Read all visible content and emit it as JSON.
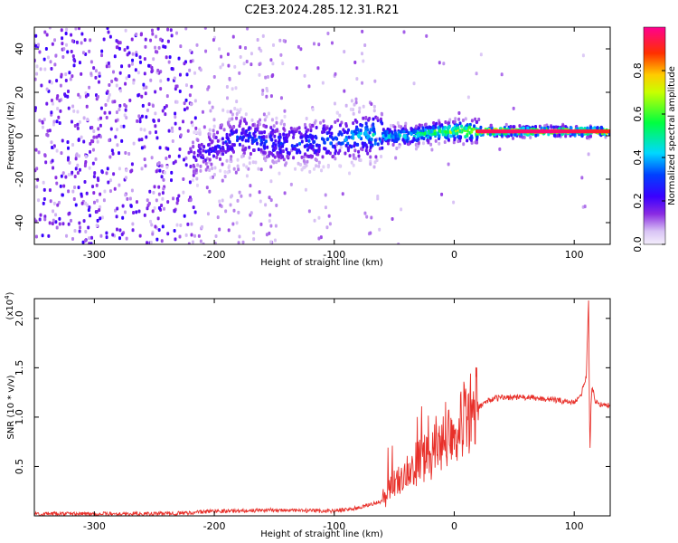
{
  "title": "C2E3.2024.285.12.31.R21",
  "colors": {
    "snr_line": "#e8302a",
    "spec_dot": "#6a00e8",
    "spec_faint": "#d8c4f4"
  },
  "chart_data": [
    {
      "type": "heatmap",
      "xlabel": "Height of straight line (km)",
      "ylabel": "Frequency (Hz)",
      "xlim": [
        -350,
        130
      ],
      "ylim": [
        -50,
        50
      ],
      "x_ticks": [
        -300,
        -200,
        -100,
        0,
        100
      ],
      "y_ticks": [
        -40,
        -20,
        0,
        20,
        40
      ],
      "colorbar": {
        "label": "Normalized spectral amplitude",
        "range": [
          0.0,
          1.0
        ],
        "ticks": [
          "0.0",
          "0.2",
          "0.4",
          "0.6",
          "0.8"
        ],
        "tick_values": [
          0.0,
          0.2,
          0.4,
          0.6,
          0.8
        ],
        "colormap": "rainbow (lavender-purple-blue-cyan-green-yellow-red-magenta)"
      },
      "ridge": [
        {
          "x": -215,
          "freq": -10,
          "amp": 0.25
        },
        {
          "x": -180,
          "freq": 0,
          "amp": 0.35
        },
        {
          "x": -140,
          "freq": -4,
          "amp": 0.35
        },
        {
          "x": -100,
          "freq": -2,
          "amp": 0.4
        },
        {
          "x": -75,
          "freq": 0,
          "amp": 0.5
        },
        {
          "x": -40,
          "freq": 0,
          "amp": 0.55
        },
        {
          "x": -10,
          "freq": 2,
          "amp": 0.7
        },
        {
          "x": 20,
          "freq": 2,
          "amp": 0.95
        },
        {
          "x": 80,
          "freq": 2,
          "amp": 0.98
        },
        {
          "x": 130,
          "freq": 2,
          "amp": 0.9
        }
      ]
    },
    {
      "type": "line",
      "xlabel": "Height of straight line (km)",
      "ylabel": "SNR (10 * v/v)",
      "y_exponent_label": "(x10",
      "y_exponent_power": "4",
      "xlim": [
        -350,
        130
      ],
      "ylim": [
        0,
        2.2
      ],
      "x_ticks": [
        -300,
        -200,
        -100,
        0,
        100
      ],
      "y_ticks": [
        0.5,
        1.0,
        1.5,
        2.0
      ],
      "y_tick_labels": [
        "0.5",
        "1.0",
        "1.5",
        "2.0"
      ],
      "series": [
        {
          "x": [
            -350,
            -300,
            -250,
            -220,
            -200,
            -180,
            -150,
            -120,
            -100,
            -80,
            -60,
            -50,
            -40,
            -30,
            -20,
            -10,
            0,
            10,
            20,
            30,
            40,
            60,
            80,
            100,
            105,
            110,
            112,
            113,
            114,
            115,
            118,
            125,
            130
          ],
          "y": [
            0.02,
            0.02,
            0.02,
            0.03,
            0.05,
            0.05,
            0.06,
            0.05,
            0.05,
            0.08,
            0.15,
            0.35,
            0.45,
            0.55,
            0.6,
            0.75,
            0.9,
            1.0,
            1.1,
            1.18,
            1.2,
            1.2,
            1.18,
            1.15,
            1.2,
            1.4,
            2.2,
            0.6,
            1.1,
            1.3,
            1.15,
            1.12,
            1.12
          ]
        }
      ]
    }
  ]
}
